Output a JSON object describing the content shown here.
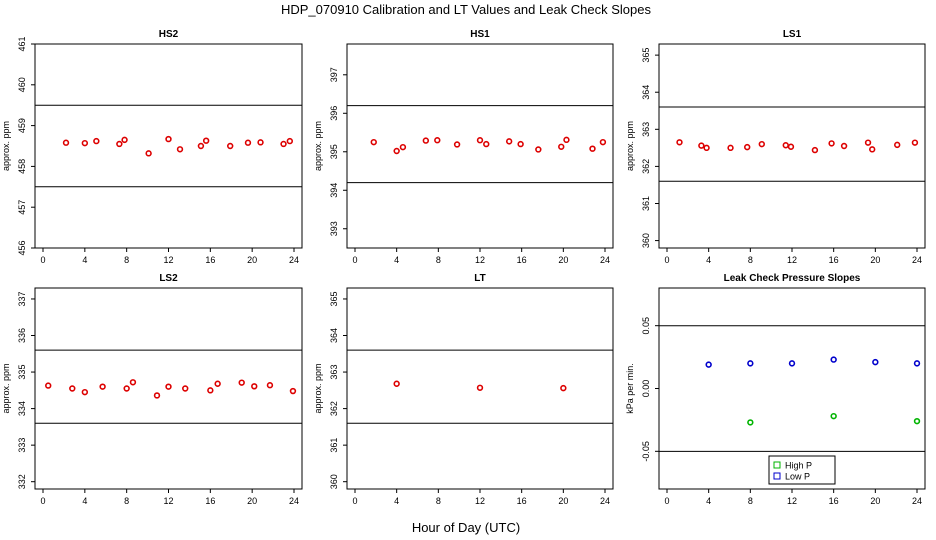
{
  "figure": {
    "title": "HDP_070910  Calibration and LT Values and Leak Check Slopes",
    "xlabel": "Hour of Day (UTC)"
  },
  "chart_data": [
    {
      "type": "scatter",
      "title": "HS2",
      "ylabel": "approx. ppm",
      "xlim": [
        0,
        24
      ],
      "ylim": [
        456,
        461
      ],
      "xticks": [
        "0",
        "4",
        "8",
        "12",
        "16",
        "20",
        "24"
      ],
      "yticks": [
        "456",
        "457",
        "458",
        "459",
        "460",
        "461"
      ],
      "hlines": [
        459.5,
        457.5
      ],
      "grid": false,
      "series": [
        {
          "color": "#dd0000",
          "marker": "circle",
          "x": [
            2.2,
            4.0,
            5.1,
            7.3,
            7.8,
            10.1,
            12.0,
            13.1,
            15.1,
            15.6,
            17.9,
            19.6,
            20.8,
            23.0,
            23.6
          ],
          "y": [
            458.58,
            458.57,
            458.62,
            458.55,
            458.65,
            458.32,
            458.67,
            458.42,
            458.5,
            458.63,
            458.5,
            458.58,
            458.59,
            458.55,
            458.62
          ]
        }
      ]
    },
    {
      "type": "scatter",
      "title": "HS1",
      "ylabel": "approx. ppm",
      "xlim": [
        0,
        24
      ],
      "ylim": [
        392.5,
        397.8
      ],
      "xticks": [
        "0",
        "4",
        "8",
        "12",
        "16",
        "20",
        "24"
      ],
      "yticks": [
        "393",
        "394",
        "395",
        "396",
        "397"
      ],
      "hlines": [
        396.2,
        394.2
      ],
      "grid": false,
      "series": [
        {
          "color": "#dd0000",
          "marker": "circle",
          "x": [
            1.8,
            4.0,
            4.6,
            6.8,
            7.9,
            9.8,
            12.0,
            12.6,
            14.8,
            15.9,
            17.6,
            19.8,
            20.3,
            22.8,
            23.8
          ],
          "y": [
            395.25,
            395.02,
            395.12,
            395.29,
            395.3,
            395.19,
            395.3,
            395.2,
            395.27,
            395.2,
            395.06,
            395.13,
            395.31,
            395.08,
            395.25
          ]
        }
      ]
    },
    {
      "type": "scatter",
      "title": "LS1",
      "ylabel": "approx. ppm",
      "xlim": [
        0,
        24
      ],
      "ylim": [
        359.8,
        365.3
      ],
      "xticks": [
        "0",
        "4",
        "8",
        "12",
        "16",
        "20",
        "24"
      ],
      "yticks": [
        "360",
        "361",
        "362",
        "363",
        "364",
        "365"
      ],
      "hlines": [
        363.6,
        361.6
      ],
      "grid": false,
      "series": [
        {
          "color": "#dd0000",
          "marker": "circle",
          "x": [
            1.2,
            3.3,
            3.8,
            6.1,
            7.7,
            9.1,
            11.4,
            11.9,
            14.2,
            15.8,
            17.0,
            19.3,
            19.7,
            22.1,
            23.8
          ],
          "y": [
            362.65,
            362.56,
            362.5,
            362.5,
            362.52,
            362.6,
            362.57,
            362.53,
            362.44,
            362.62,
            362.55,
            362.64,
            362.46,
            362.58,
            362.64
          ]
        }
      ]
    },
    {
      "type": "scatter",
      "title": "LS2",
      "ylabel": "approx. ppm",
      "xlim": [
        0,
        24
      ],
      "ylim": [
        331.8,
        337.3
      ],
      "xticks": [
        "0",
        "4",
        "8",
        "12",
        "16",
        "20",
        "24"
      ],
      "yticks": [
        "332",
        "333",
        "334",
        "335",
        "336",
        "337"
      ],
      "hlines": [
        335.6,
        333.6
      ],
      "grid": false,
      "series": [
        {
          "color": "#dd0000",
          "marker": "circle",
          "x": [
            0.5,
            2.8,
            4.0,
            5.7,
            8.0,
            8.6,
            10.9,
            12.0,
            13.6,
            16.0,
            16.7,
            19.0,
            20.2,
            21.7,
            23.9
          ],
          "y": [
            334.63,
            334.55,
            334.45,
            334.6,
            334.55,
            334.72,
            334.36,
            334.6,
            334.55,
            334.5,
            334.68,
            334.71,
            334.61,
            334.64,
            334.48
          ]
        }
      ]
    },
    {
      "type": "scatter",
      "title": "LT",
      "ylabel": "approx. ppm",
      "xlim": [
        0,
        24
      ],
      "ylim": [
        359.8,
        365.3
      ],
      "xticks": [
        "0",
        "4",
        "8",
        "12",
        "16",
        "20",
        "24"
      ],
      "yticks": [
        "360",
        "361",
        "362",
        "363",
        "364",
        "365"
      ],
      "hlines": [
        363.6,
        361.6
      ],
      "grid": false,
      "series": [
        {
          "color": "#dd0000",
          "marker": "circle",
          "x": [
            4.0,
            12.0,
            20.0
          ],
          "y": [
            362.68,
            362.57,
            362.56
          ]
        }
      ]
    },
    {
      "type": "scatter",
      "title": "Leak Check Pressure Slopes",
      "ylabel": "kPa per min.",
      "xlim": [
        0,
        24
      ],
      "ylim": [
        -0.08,
        0.08
      ],
      "xticks": [
        "0",
        "4",
        "8",
        "12",
        "16",
        "20",
        "24"
      ],
      "yticks": [
        "-0.05",
        "0.00",
        "0.05"
      ],
      "hlines": [
        0.05,
        -0.05
      ],
      "grid": false,
      "legend": {
        "position": "bottom-center",
        "entries": [
          "High P",
          "Low P"
        ]
      },
      "series": [
        {
          "name": "High P",
          "color": "#00b400",
          "marker": "circle",
          "x": [
            8.0,
            16.0,
            24.0
          ],
          "y": [
            -0.027,
            -0.022,
            -0.026
          ]
        },
        {
          "name": "Low P",
          "color": "#0000cc",
          "marker": "circle",
          "x": [
            4.0,
            8.0,
            12.0,
            16.0,
            20.0,
            24.0
          ],
          "y": [
            0.019,
            0.02,
            0.02,
            0.023,
            0.021,
            0.02
          ]
        }
      ]
    }
  ]
}
